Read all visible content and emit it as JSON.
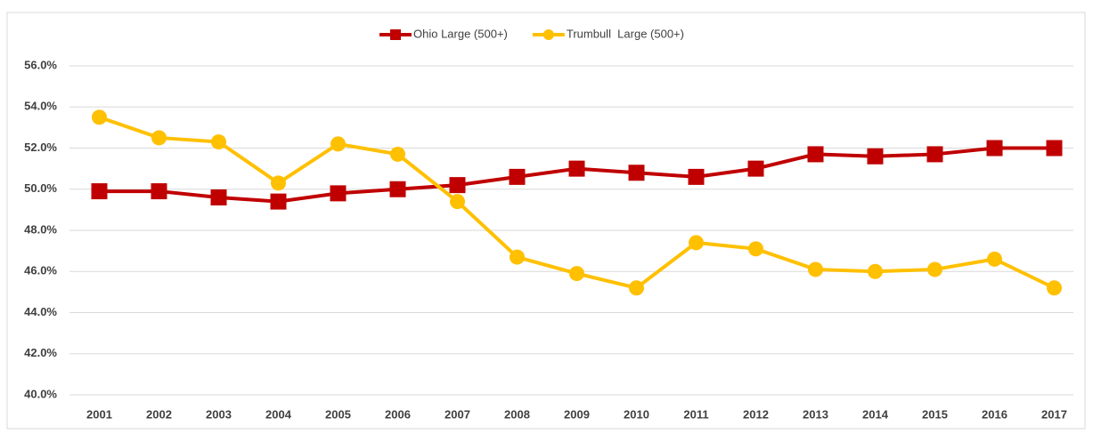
{
  "chart_data": {
    "type": "line",
    "categories": [
      "2001",
      "2002",
      "2003",
      "2004",
      "2005",
      "2006",
      "2007",
      "2008",
      "2009",
      "2010",
      "2011",
      "2012",
      "2013",
      "2014",
      "2015",
      "2016",
      "2017"
    ],
    "series": [
      {
        "name": "Ohio Large (500+)",
        "color": "#c00000",
        "marker": "square",
        "values": [
          49.9,
          49.9,
          49.6,
          49.4,
          49.8,
          50.0,
          50.2,
          50.6,
          51.0,
          50.8,
          50.6,
          51.0,
          51.7,
          51.6,
          51.7,
          52.0,
          52.0
        ]
      },
      {
        "name": "Trumbull  Large (500+)",
        "color": "#ffc000",
        "marker": "circle",
        "values": [
          53.5,
          52.5,
          52.3,
          50.3,
          52.2,
          51.7,
          49.4,
          46.7,
          45.9,
          45.2,
          47.4,
          47.1,
          46.1,
          46.0,
          46.1,
          46.6,
          45.2
        ]
      }
    ],
    "ylim": [
      40,
      56
    ],
    "yticks": [
      {
        "value": 40,
        "label": "40.0%"
      },
      {
        "value": 42,
        "label": "42.0%"
      },
      {
        "value": 44,
        "label": "44.0%"
      },
      {
        "value": 46,
        "label": "46.0%"
      },
      {
        "value": 48,
        "label": "48.0%"
      },
      {
        "value": 50,
        "label": "50.0%"
      },
      {
        "value": 52,
        "label": "52.0%"
      },
      {
        "value": 54,
        "label": "54.0%"
      },
      {
        "value": 56,
        "label": "56.0%"
      }
    ],
    "grid": true,
    "legend": "top"
  }
}
